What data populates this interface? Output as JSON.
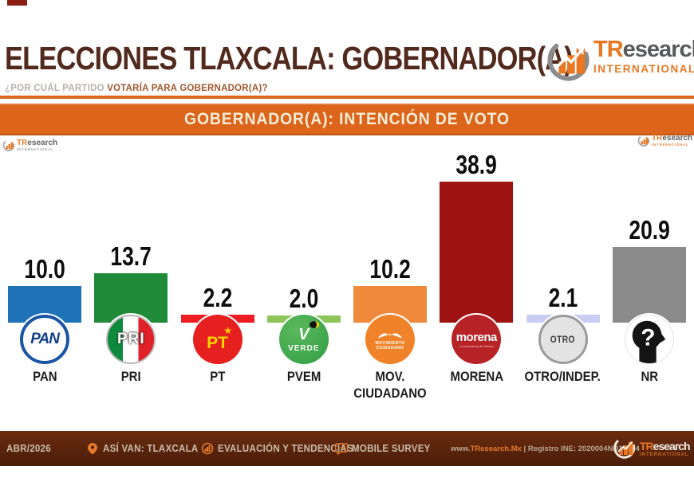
{
  "header": {
    "title": "ELECCIONES TLAXCALA: GOBERNADOR(A)",
    "subtitle_prefix": "¿POR CUÁL PARTIDO ",
    "subtitle_bold": "VOTARÍA PARA GOBERNADOR(A)?"
  },
  "brand": {
    "tr": "TR",
    "rest": "esearch",
    "sub": "INTERNATIONAL"
  },
  "banner": {
    "title": "GOBERNADOR(A): INTENCIÓN DE VOTO"
  },
  "chart_data": {
    "type": "bar",
    "title": "GOBERNADOR(A): INTENCIÓN DE VOTO",
    "xlabel": "",
    "ylabel": "",
    "ylim": [
      0,
      42
    ],
    "grid": false,
    "data_labels": true,
    "categories": [
      "PAN",
      "PRI",
      "PT",
      "PVEM",
      "MOV. CIUDADANO",
      "MORENA",
      "OTRO/INDEP.",
      "NR"
    ],
    "values": [
      10.0,
      13.7,
      2.2,
      2.0,
      10.2,
      38.9,
      2.1,
      20.9
    ],
    "bar_colors": [
      "#1e73b8",
      "#1f8b38",
      "#ee1c23",
      "#8dc557",
      "#ef8a3d",
      "#9e1212",
      "#c9cdf4",
      "#8b8b8b"
    ],
    "parties": [
      {
        "id": "pan",
        "label": "PAN",
        "label2": "",
        "value": 10.0,
        "value_label": "10.0",
        "bar_color": "#1e73b8",
        "logo_text": "PAN"
      },
      {
        "id": "pri",
        "label": "PRI",
        "label2": "",
        "value": 13.7,
        "value_label": "13.7",
        "bar_color": "#1f8b38",
        "logo_text": "PRI"
      },
      {
        "id": "pt",
        "label": "PT",
        "label2": "",
        "value": 2.2,
        "value_label": "2.2",
        "bar_color": "#ee1c23",
        "logo_text": "PT",
        "logo_star": "★"
      },
      {
        "id": "pvem",
        "label": "PVEM",
        "label2": "",
        "value": 2.0,
        "value_label": "2.0",
        "bar_color": "#8dc557",
        "logo_emblem": "V",
        "logo_text": "VERDE"
      },
      {
        "id": "mc",
        "label": "MOV.",
        "label2": "CIUDADANO",
        "value": 10.2,
        "value_label": "10.2",
        "bar_color": "#ef8a3d",
        "logo_line1": "MOVIMIENTO",
        "logo_line2": "CIUDADANO"
      },
      {
        "id": "morena",
        "label": "MORENA",
        "label2": "",
        "value": 38.9,
        "value_label": "38.9",
        "bar_color": "#9e1212",
        "logo_text": "morena",
        "logo_tagline": "La esperanza de México"
      },
      {
        "id": "otro",
        "label": "OTRO/INDEP.",
        "label2": "",
        "value": 2.1,
        "value_label": "2.1",
        "bar_color": "#c9cdf4",
        "logo_text": "OTRO"
      },
      {
        "id": "nr",
        "label": "NR",
        "label2": "",
        "value": 20.9,
        "value_label": "20.9",
        "bar_color": "#8b8b8b",
        "logo_text": "?"
      }
    ]
  },
  "footer": {
    "date": "ABR/2026",
    "items": [
      "ASÍ VAN: TLAXCALA",
      "EVALUACIÓN Y TENDENCIAS",
      "MOBILE SURVEY"
    ],
    "registro_www": "www.",
    "registro_brand": "TResearch.Mx",
    "registro_rest": " | Registro INE: 2020004ND16934"
  }
}
